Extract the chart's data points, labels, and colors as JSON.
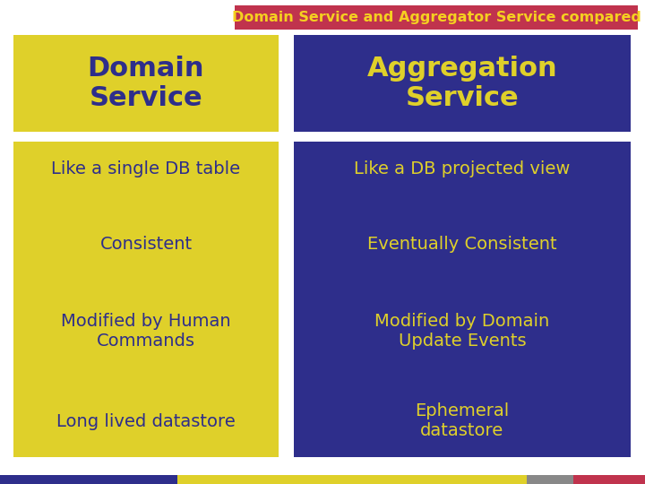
{
  "title": "Domain Service and Aggregator Service compared",
  "title_bg": "#c0334d",
  "title_color": "#f5d020",
  "title_fontsize": 11.5,
  "bg_color": "#ffffff",
  "yellow": "#dfd02a",
  "dark_blue": "#2e2e8b",
  "left_header": "Domain\nService",
  "right_header": "Aggregation\nService",
  "left_items": [
    "Like a single DB table",
    "Consistent",
    "Modified by Human\nCommands",
    "Long lived datastore"
  ],
  "right_items": [
    "Like a DB projected view",
    "Eventually Consistent",
    "Modified by Domain\nUpdate Events",
    "Ephemeral\ndatastore"
  ],
  "header_fontsize": 22,
  "item_fontsize": 14,
  "item_color_left": "#2e2e8b",
  "item_color_right": "#dfd02a",
  "bottom_bar_blue": "#2e2e8b",
  "bottom_bar_yellow": "#dfd02a",
  "bottom_bar_gray": "#888888",
  "bottom_bar_pink": "#c0334d"
}
